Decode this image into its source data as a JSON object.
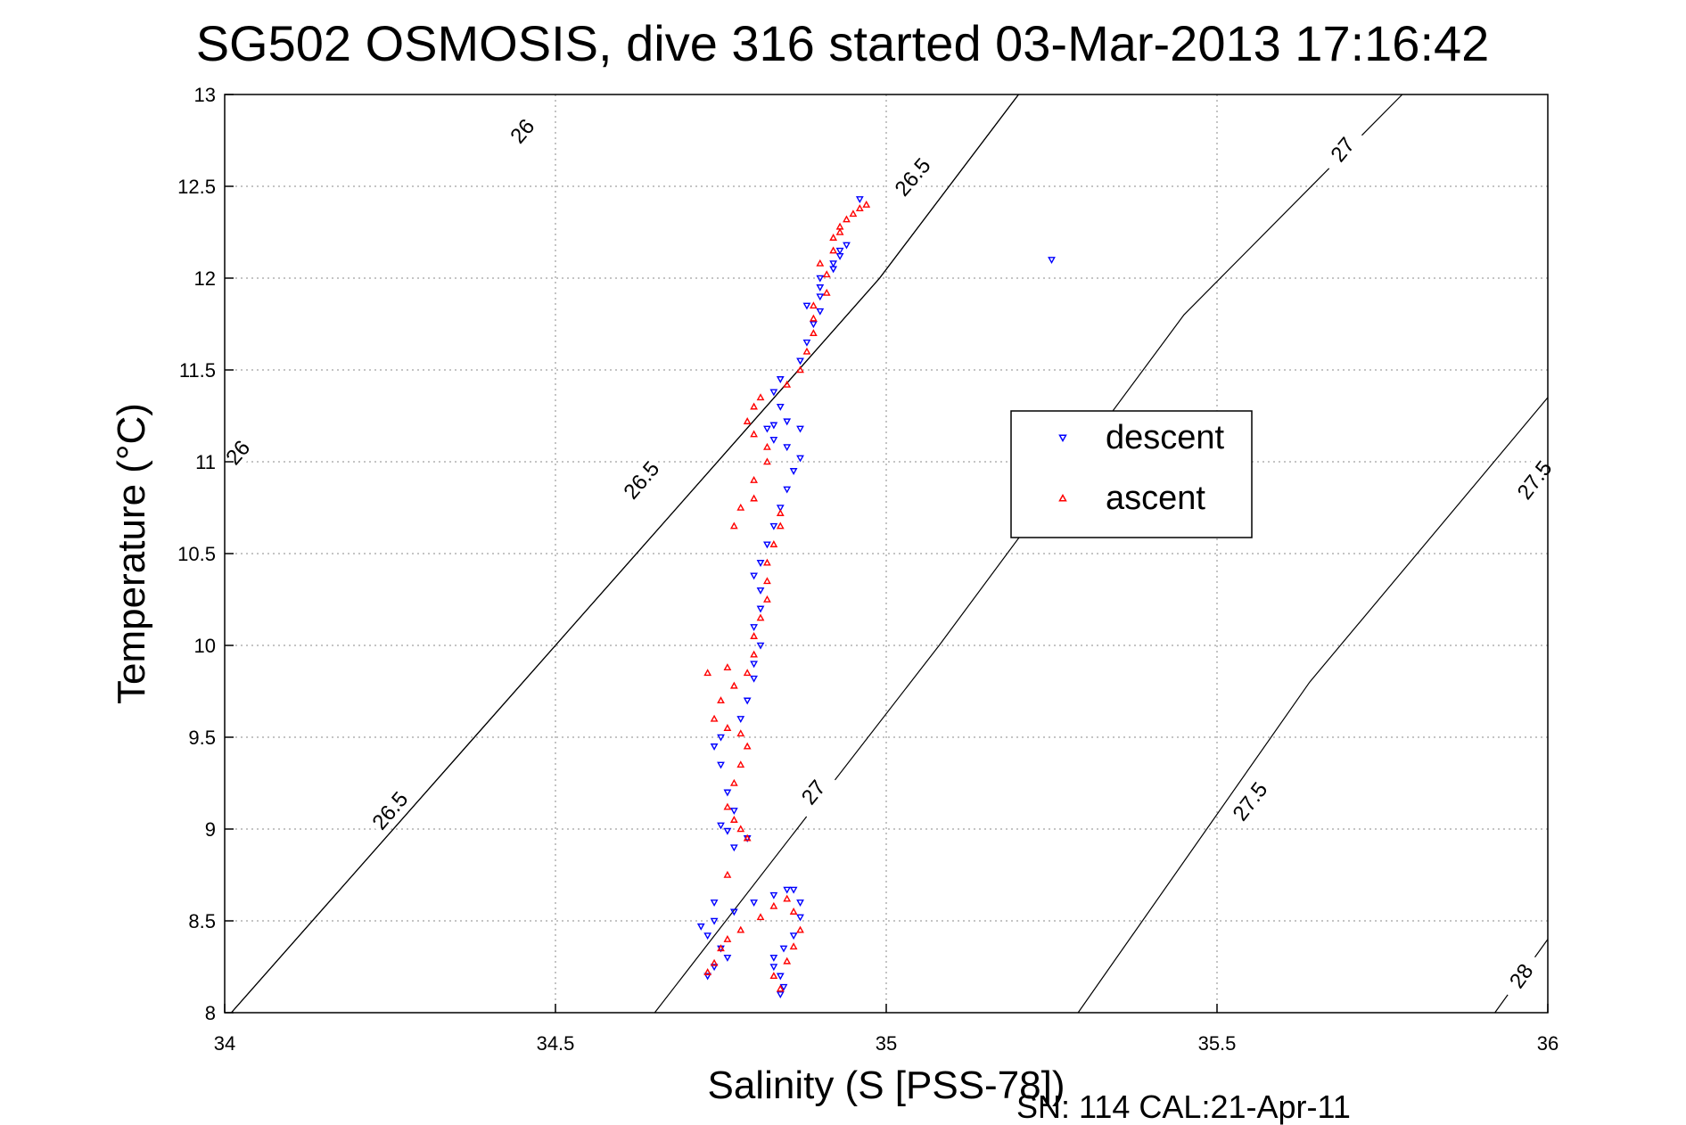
{
  "chart_data": {
    "type": "scatter",
    "title": "SG502 OSMOSIS, dive 316 started 03-Mar-2013 17:16:42",
    "xlabel": "Salinity (S [PSS-78])",
    "ylabel": "Temperature (°C)",
    "xlim": [
      34,
      36
    ],
    "ylim": [
      8,
      13
    ],
    "xticks": [
      "34",
      "34.5",
      "35",
      "35.5",
      "36"
    ],
    "yticks": [
      "8",
      "8.5",
      "9",
      "9.5",
      "10",
      "10.5",
      "11",
      "11.5",
      "12",
      "12.5",
      "13"
    ],
    "grid": true,
    "legend_position": "center-right",
    "footer": "SN: 114  CAL:21-Apr-11",
    "density_contours": [
      {
        "level": 26.0,
        "points": [
          [
            34.01,
            8.0
          ],
          [
            34.5,
            10.0
          ],
          [
            34.99,
            12.0
          ],
          [
            35.2,
            13.0
          ]
        ],
        "labels": [
          {
            "text": "26",
            "s": 34.02,
            "t": 11.05
          },
          {
            "text": "26",
            "s": 34.45,
            "t": 12.8
          }
        ]
      },
      {
        "level": 26.5,
        "points": [
          [
            34.01,
            8.0
          ],
          [
            34.5,
            10.0
          ],
          [
            34.99,
            12.0
          ],
          [
            35.2,
            13.0
          ]
        ],
        "labels": [
          {
            "text": "26.5",
            "s": 34.25,
            "t": 9.1
          },
          {
            "text": "26.5",
            "s": 34.63,
            "t": 10.9
          },
          {
            "text": "26.5",
            "s": 35.04,
            "t": 12.55
          }
        ]
      },
      {
        "level": 27.0,
        "points": [
          [
            34.65,
            8.0
          ],
          [
            35.08,
            10.0
          ],
          [
            35.45,
            11.8
          ],
          [
            35.78,
            13.0
          ]
        ],
        "labels": [
          {
            "text": "27",
            "s": 34.89,
            "t": 9.2
          },
          {
            "text": "27",
            "s": 35.69,
            "t": 12.7
          }
        ]
      },
      {
        "level": 27.5,
        "points": [
          [
            35.29,
            8.0
          ],
          [
            35.64,
            9.8
          ],
          [
            36.0,
            11.35
          ]
        ],
        "labels": [
          {
            "text": "27.5",
            "s": 35.55,
            "t": 9.15
          },
          {
            "text": "27.5",
            "s": 35.98,
            "t": 10.9
          }
        ]
      },
      {
        "level": 28.0,
        "points": [
          [
            35.92,
            8.0
          ],
          [
            36.0,
            8.4
          ]
        ],
        "labels": [
          {
            "text": "28",
            "s": 35.96,
            "t": 8.2
          }
        ]
      }
    ],
    "series": [
      {
        "name": "descent",
        "color": "#0000ff",
        "marker": "triangle-down",
        "points": [
          [
            34.84,
            8.1
          ],
          [
            34.845,
            8.14
          ],
          [
            34.84,
            8.2
          ],
          [
            34.83,
            8.25
          ],
          [
            34.83,
            8.3
          ],
          [
            34.845,
            8.35
          ],
          [
            34.86,
            8.42
          ],
          [
            34.87,
            8.52
          ],
          [
            34.87,
            8.6
          ],
          [
            34.86,
            8.67
          ],
          [
            34.85,
            8.67
          ],
          [
            34.83,
            8.64
          ],
          [
            34.8,
            8.6
          ],
          [
            34.77,
            8.55
          ],
          [
            34.74,
            8.5
          ],
          [
            34.72,
            8.47
          ],
          [
            34.73,
            8.42
          ],
          [
            34.75,
            8.35
          ],
          [
            34.76,
            8.3
          ],
          [
            34.74,
            8.25
          ],
          [
            34.73,
            8.2
          ],
          [
            34.74,
            8.6
          ],
          [
            34.77,
            8.9
          ],
          [
            34.79,
            8.95
          ],
          [
            34.76,
            8.99
          ],
          [
            34.75,
            9.02
          ],
          [
            34.77,
            9.1
          ],
          [
            34.76,
            9.2
          ],
          [
            34.75,
            9.35
          ],
          [
            34.74,
            9.45
          ],
          [
            34.75,
            9.5
          ],
          [
            34.78,
            9.6
          ],
          [
            34.79,
            9.7
          ],
          [
            34.8,
            9.82
          ],
          [
            34.8,
            9.9
          ],
          [
            34.81,
            10.0
          ],
          [
            34.8,
            10.1
          ],
          [
            34.81,
            10.2
          ],
          [
            34.81,
            10.3
          ],
          [
            34.8,
            10.38
          ],
          [
            34.81,
            10.45
          ],
          [
            34.82,
            10.55
          ],
          [
            34.83,
            10.65
          ],
          [
            34.84,
            10.75
          ],
          [
            34.85,
            10.85
          ],
          [
            34.86,
            10.95
          ],
          [
            34.87,
            11.02
          ],
          [
            34.85,
            11.08
          ],
          [
            34.83,
            11.12
          ],
          [
            34.82,
            11.18
          ],
          [
            34.83,
            11.2
          ],
          [
            34.85,
            11.22
          ],
          [
            34.87,
            11.18
          ],
          [
            34.84,
            11.3
          ],
          [
            34.83,
            11.38
          ],
          [
            34.84,
            11.45
          ],
          [
            34.87,
            11.55
          ],
          [
            34.88,
            11.65
          ],
          [
            34.89,
            11.75
          ],
          [
            34.9,
            11.82
          ],
          [
            34.88,
            11.85
          ],
          [
            34.9,
            11.9
          ],
          [
            34.9,
            11.95
          ],
          [
            34.9,
            12.0
          ],
          [
            34.92,
            12.08
          ],
          [
            34.93,
            12.15
          ],
          [
            34.94,
            12.18
          ],
          [
            34.93,
            12.12
          ],
          [
            34.92,
            12.05
          ],
          [
            34.96,
            12.43
          ],
          [
            35.25,
            12.1
          ]
        ]
      },
      {
        "name": "ascent",
        "color": "#ff0000",
        "marker": "triangle-up",
        "points": [
          [
            34.84,
            8.13
          ],
          [
            34.83,
            8.2
          ],
          [
            34.85,
            8.28
          ],
          [
            34.86,
            8.36
          ],
          [
            34.87,
            8.45
          ],
          [
            34.86,
            8.55
          ],
          [
            34.85,
            8.62
          ],
          [
            34.83,
            8.58
          ],
          [
            34.81,
            8.52
          ],
          [
            34.78,
            8.45
          ],
          [
            34.76,
            8.4
          ],
          [
            34.75,
            8.35
          ],
          [
            34.74,
            8.27
          ],
          [
            34.73,
            8.22
          ],
          [
            34.76,
            8.75
          ],
          [
            34.79,
            8.95
          ],
          [
            34.78,
            9.0
          ],
          [
            34.77,
            9.05
          ],
          [
            34.76,
            9.12
          ],
          [
            34.77,
            9.25
          ],
          [
            34.78,
            9.35
          ],
          [
            34.79,
            9.45
          ],
          [
            34.78,
            9.52
          ],
          [
            34.76,
            9.55
          ],
          [
            34.74,
            9.6
          ],
          [
            34.75,
            9.7
          ],
          [
            34.77,
            9.78
          ],
          [
            34.79,
            9.85
          ],
          [
            34.73,
            9.85
          ],
          [
            34.76,
            9.88
          ],
          [
            34.8,
            9.95
          ],
          [
            34.8,
            10.05
          ],
          [
            34.81,
            10.15
          ],
          [
            34.82,
            10.25
          ],
          [
            34.82,
            10.35
          ],
          [
            34.82,
            10.45
          ],
          [
            34.83,
            10.55
          ],
          [
            34.84,
            10.65
          ],
          [
            34.84,
            10.72
          ],
          [
            34.8,
            10.8
          ],
          [
            34.78,
            10.75
          ],
          [
            34.77,
            10.65
          ],
          [
            34.8,
            10.9
          ],
          [
            34.82,
            11.0
          ],
          [
            34.82,
            11.08
          ],
          [
            34.8,
            11.15
          ],
          [
            34.79,
            11.22
          ],
          [
            34.8,
            11.3
          ],
          [
            34.81,
            11.35
          ],
          [
            34.85,
            11.42
          ],
          [
            34.87,
            11.5
          ],
          [
            34.88,
            11.6
          ],
          [
            34.89,
            11.7
          ],
          [
            34.89,
            11.78
          ],
          [
            34.89,
            11.85
          ],
          [
            34.91,
            11.92
          ],
          [
            34.91,
            12.02
          ],
          [
            34.9,
            12.08
          ],
          [
            34.92,
            12.15
          ],
          [
            34.92,
            12.22
          ],
          [
            34.93,
            12.28
          ],
          [
            34.95,
            12.35
          ],
          [
            34.96,
            12.38
          ],
          [
            34.97,
            12.4
          ],
          [
            34.94,
            12.32
          ],
          [
            34.93,
            12.25
          ]
        ]
      }
    ]
  }
}
